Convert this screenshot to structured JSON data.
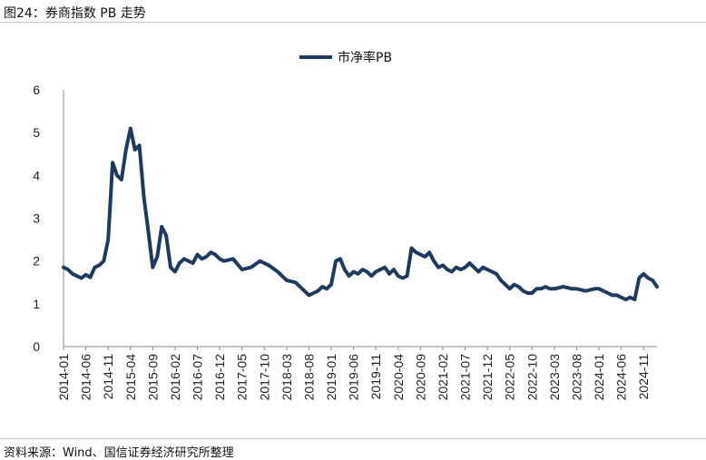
{
  "figure": {
    "title": "图24：券商指数 PB 走势",
    "source": "资料来源：Wind、国信证券经济研究所整理"
  },
  "chart_data": {
    "type": "line",
    "ylim": [
      0,
      6
    ],
    "yticks": [
      0,
      1,
      2,
      3,
      4,
      5,
      6
    ],
    "xlim": [
      "2014-01",
      "2025-02"
    ],
    "xticks": [
      "2014-01",
      "2014-06",
      "2014-11",
      "2015-04",
      "2015-09",
      "2016-02",
      "2016-07",
      "2016-12",
      "2017-05",
      "2017-10",
      "2018-03",
      "2018-08",
      "2019-01",
      "2019-06",
      "2019-11",
      "2020-04",
      "2020-09",
      "2021-02",
      "2021-07",
      "2021-12",
      "2022-05",
      "2022-10",
      "2023-03",
      "2023-08",
      "2024-01",
      "2024-06",
      "2024-11"
    ],
    "legend_position": "top-center",
    "grid": false,
    "colors": {
      "series": "#1f3a5f",
      "axis": "#888888"
    },
    "series": [
      {
        "name": "市净率PB",
        "x": [
          "2014-01",
          "2014-02",
          "2014-03",
          "2014-04",
          "2014-05",
          "2014-06",
          "2014-07",
          "2014-08",
          "2014-09",
          "2014-10",
          "2014-11",
          "2014-12",
          "2015-01",
          "2015-02",
          "2015-03",
          "2015-04",
          "2015-05",
          "2015-06",
          "2015-07",
          "2015-08",
          "2015-09",
          "2015-10",
          "2015-11",
          "2015-12",
          "2016-01",
          "2016-02",
          "2016-03",
          "2016-04",
          "2016-05",
          "2016-06",
          "2016-07",
          "2016-08",
          "2016-09",
          "2016-10",
          "2016-11",
          "2016-12",
          "2017-01",
          "2017-03",
          "2017-05",
          "2017-07",
          "2017-09",
          "2017-10",
          "2017-11",
          "2018-01",
          "2018-02",
          "2018-03",
          "2018-05",
          "2018-06",
          "2018-07",
          "2018-08",
          "2018-09",
          "2018-10",
          "2018-11",
          "2018-12",
          "2019-01",
          "2019-02",
          "2019-03",
          "2019-04",
          "2019-05",
          "2019-06",
          "2019-07",
          "2019-08",
          "2019-09",
          "2019-10",
          "2019-11",
          "2019-12",
          "2020-01",
          "2020-02",
          "2020-03",
          "2020-04",
          "2020-05",
          "2020-06",
          "2020-07",
          "2020-08",
          "2020-09",
          "2020-10",
          "2020-11",
          "2020-12",
          "2021-01",
          "2021-02",
          "2021-03",
          "2021-04",
          "2021-05",
          "2021-06",
          "2021-07",
          "2021-08",
          "2021-09",
          "2021-10",
          "2021-11",
          "2021-12",
          "2022-01",
          "2022-02",
          "2022-03",
          "2022-04",
          "2022-05",
          "2022-06",
          "2022-07",
          "2022-08",
          "2022-09",
          "2022-10",
          "2022-11",
          "2022-12",
          "2023-01",
          "2023-02",
          "2023-03",
          "2023-05",
          "2023-07",
          "2023-08",
          "2023-10",
          "2023-12",
          "2024-01",
          "2024-02",
          "2024-03",
          "2024-04",
          "2024-05",
          "2024-06",
          "2024-07",
          "2024-08",
          "2024-09",
          "2024-10",
          "2024-11",
          "2024-12",
          "2025-01",
          "2025-02"
        ],
        "y": [
          1.85,
          1.8,
          1.7,
          1.65,
          1.6,
          1.68,
          1.62,
          1.85,
          1.9,
          2.0,
          2.5,
          4.3,
          4.0,
          3.9,
          4.6,
          5.1,
          4.6,
          4.7,
          3.5,
          2.7,
          1.85,
          2.1,
          2.8,
          2.6,
          1.85,
          1.75,
          1.95,
          2.05,
          2.0,
          1.95,
          2.15,
          2.05,
          2.1,
          2.2,
          2.15,
          2.05,
          2.0,
          2.05,
          1.8,
          1.85,
          2.0,
          1.95,
          1.9,
          1.75,
          1.65,
          1.55,
          1.5,
          1.4,
          1.3,
          1.2,
          1.25,
          1.3,
          1.4,
          1.35,
          1.45,
          2.0,
          2.05,
          1.8,
          1.65,
          1.75,
          1.7,
          1.8,
          1.75,
          1.65,
          1.75,
          1.8,
          1.85,
          1.7,
          1.8,
          1.65,
          1.6,
          1.65,
          2.3,
          2.2,
          2.15,
          2.1,
          2.2,
          2.0,
          1.85,
          1.9,
          1.8,
          1.75,
          1.85,
          1.8,
          1.85,
          1.95,
          1.85,
          1.75,
          1.85,
          1.8,
          1.75,
          1.7,
          1.55,
          1.45,
          1.35,
          1.45,
          1.4,
          1.3,
          1.25,
          1.25,
          1.35,
          1.35,
          1.4,
          1.35,
          1.35,
          1.4,
          1.35,
          1.35,
          1.3,
          1.35,
          1.35,
          1.3,
          1.25,
          1.2,
          1.2,
          1.15,
          1.1,
          1.15,
          1.1,
          1.6,
          1.7,
          1.6,
          1.55,
          1.4
        ]
      }
    ]
  }
}
